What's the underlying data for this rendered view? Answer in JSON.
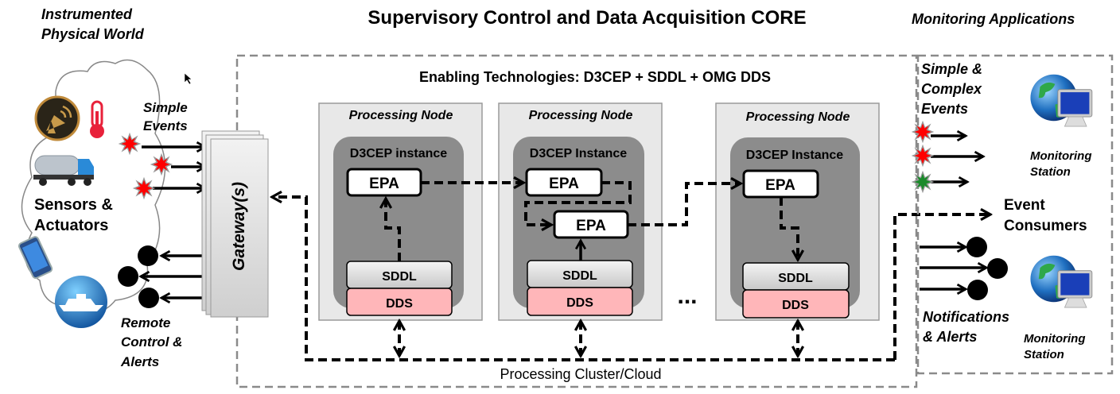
{
  "title": "Supervisory Control and Data Acquisition CORE",
  "left": {
    "heading": [
      "Instrumented",
      "Physical World"
    ],
    "sensors": [
      "Sensors &",
      "Actuators"
    ],
    "simple_events": [
      "Simple",
      "Events"
    ],
    "remote_control": [
      "Remote",
      "Control &",
      "Alerts"
    ],
    "icons": [
      "satellite-dish-icon",
      "thermometer-icon",
      "tanker-truck-icon",
      "smartphone-icon",
      "ship-icon"
    ]
  },
  "gateway_label": "Gateway(s)",
  "core": {
    "enabling": "Enabling Technologies: D3CEP + SDDL + OMG DDS",
    "cluster_label": "Processing Cluster/Cloud",
    "ellipsis": "...",
    "nodes": [
      {
        "title": "Processing Node",
        "instance": "D3CEP instance",
        "epa": [
          "EPA"
        ],
        "sddl": "SDDL",
        "dds": "DDS"
      },
      {
        "title": "Processing Node",
        "instance": "D3CEP Instance",
        "epa": [
          "EPA",
          "EPA"
        ],
        "sddl": "SDDL",
        "dds": "DDS"
      },
      {
        "title": "Processing Node",
        "instance": "D3CEP Instance",
        "epa": [
          "EPA"
        ],
        "sddl": "SDDL",
        "dds": "DDS"
      }
    ]
  },
  "right": {
    "heading": "Monitoring Applications",
    "events": [
      "Simple &",
      "Complex",
      "Events"
    ],
    "event_colors": [
      "#ff0000",
      "#ff0000",
      "#1a8a2a"
    ],
    "station": [
      "Monitoring",
      "Station"
    ],
    "event_consumers": [
      "Event",
      "Consumers"
    ],
    "notifications": [
      "Notifications",
      "& Alerts"
    ]
  },
  "colors": {
    "event_red": "#ff0000",
    "event_green": "#1a8a2a",
    "dds": "#ffb6b9",
    "sddl": "#dcdcdc",
    "node": "#e8e8e8",
    "instance": "#8c8c8c"
  }
}
